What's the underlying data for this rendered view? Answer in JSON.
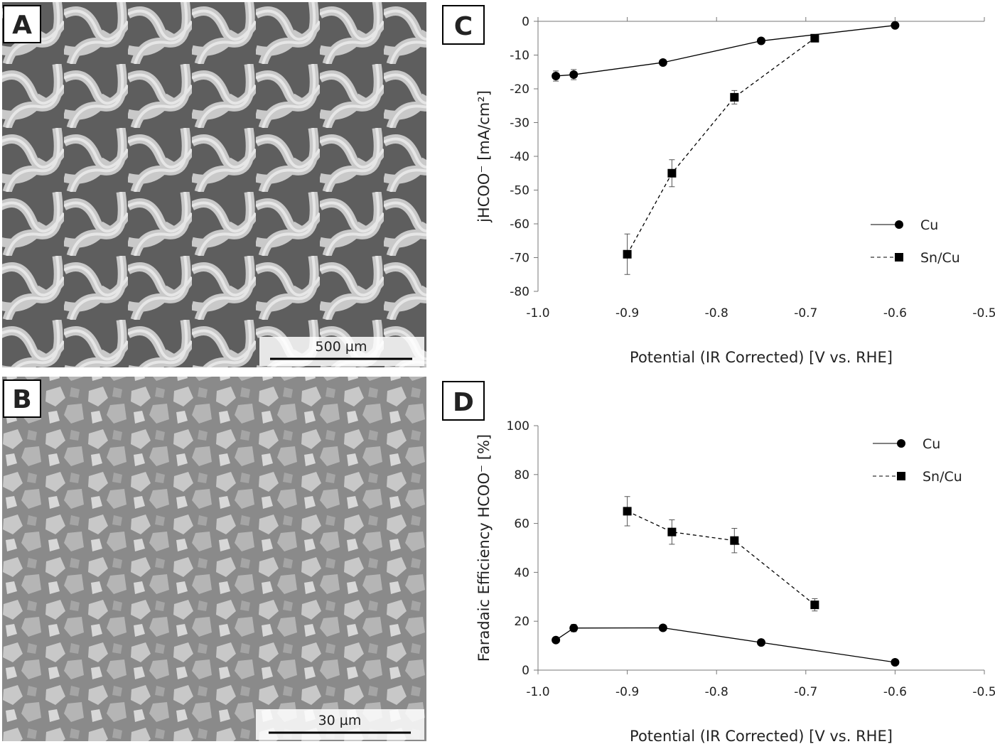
{
  "panels": [
    {
      "label": "A",
      "scale_bar": "500 µm"
    },
    {
      "label": "B",
      "scale_bar": "30 µm"
    }
  ],
  "chart_data": [
    {
      "type": "line",
      "panel_label": "C",
      "xlabel": "Potential (IR Corrected) [V vs. RHE]",
      "ylabel": "jHCOO⁻ [mA/cm²]",
      "xlim": [
        -1.0,
        -0.5
      ],
      "xticks": [
        {
          "value": -1.0,
          "label": "-1.0"
        },
        -0.9,
        -0.8,
        -0.7,
        -0.6,
        -0.5
      ],
      "ylim": [
        -80,
        0
      ],
      "yticks": [
        -80,
        -70,
        -60,
        -50,
        -40,
        -30,
        -20,
        -10,
        0
      ],
      "grid": false,
      "series": [
        {
          "name": "Cu",
          "color": "#000000",
          "marker": "circle",
          "line_style": "solid",
          "x": [
            -0.98,
            -0.96,
            -0.86,
            -0.75,
            -0.6
          ],
          "values": [
            -16.2,
            -15.8,
            -12.2,
            -5.8,
            -1.2
          ],
          "errors": [
            1.5,
            1.5,
            0.6,
            0.6,
            0.4
          ]
        },
        {
          "name": "Sn/Cu",
          "color": "#000000",
          "marker": "square",
          "line_style": "dashed",
          "x": [
            -0.9,
            -0.85,
            -0.78,
            -0.69
          ],
          "values": [
            -69,
            -45,
            -22.5,
            -5
          ],
          "errors": [
            6,
            4,
            2,
            0.6
          ]
        }
      ]
    },
    {
      "type": "line",
      "panel_label": "D",
      "xlabel": "Potential (IR Corrected) [V vs. RHE]",
      "ylabel": "Faradaic Efficiency HCOO⁻ [%]",
      "xlim": [
        -1.0,
        -0.5
      ],
      "xticks": [
        {
          "value": -1.0,
          "label": "-1.0"
        },
        -0.9,
        -0.8,
        -0.7,
        -0.6,
        -0.5
      ],
      "ylim": [
        0,
        100
      ],
      "yticks": [
        0,
        20,
        40,
        60,
        80,
        100
      ],
      "grid": false,
      "series": [
        {
          "name": "Cu",
          "color": "#000000",
          "marker": "circle",
          "line_style": "solid",
          "x": [
            -0.98,
            -0.96,
            -0.86,
            -0.75,
            -0.6
          ],
          "values": [
            12.3,
            17.2,
            17.3,
            11.3,
            3.2
          ],
          "errors": [
            0.6,
            1.5,
            1,
            0.6,
            0.5
          ]
        },
        {
          "name": "Sn/Cu",
          "color": "#000000",
          "marker": "square",
          "line_style": "dashed",
          "x": [
            -0.9,
            -0.85,
            -0.78,
            -0.69
          ],
          "values": [
            65,
            56.5,
            53,
            26.7
          ],
          "errors": [
            6,
            5,
            5,
            2.5
          ]
        }
      ]
    }
  ]
}
